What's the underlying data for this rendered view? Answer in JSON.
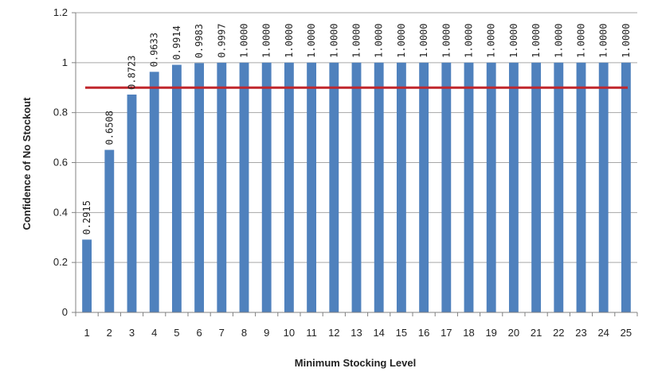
{
  "chart_data": {
    "type": "bar",
    "title": "",
    "xlabel": "Minimum Stocking Level",
    "ylabel": "Confidence of No Stockout",
    "categories": [
      "1",
      "2",
      "3",
      "4",
      "5",
      "6",
      "7",
      "8",
      "9",
      "10",
      "11",
      "12",
      "13",
      "14",
      "15",
      "16",
      "17",
      "18",
      "19",
      "20",
      "21",
      "22",
      "23",
      "24",
      "25"
    ],
    "values": [
      0.2915,
      0.6508,
      0.8723,
      0.9633,
      0.9914,
      0.9983,
      0.9997,
      1.0,
      1.0,
      1.0,
      1.0,
      1.0,
      1.0,
      1.0,
      1.0,
      1.0,
      1.0,
      1.0,
      1.0,
      1.0,
      1.0,
      1.0,
      1.0,
      1.0,
      1.0
    ],
    "data_labels": [
      "0.2915",
      "0.6508",
      "0.8723",
      "0.9633",
      "0.9914",
      "0.9983",
      "0.9997",
      "1.0000",
      "1.0000",
      "1.0000",
      "1.0000",
      "1.0000",
      "1.0000",
      "1.0000",
      "1.0000",
      "1.0000",
      "1.0000",
      "1.0000",
      "1.0000",
      "1.0000",
      "1.0000",
      "1.0000",
      "1.0000",
      "1.0000",
      "1.0000"
    ],
    "ylim": [
      0,
      1.2
    ],
    "yticks": [
      0,
      0.2,
      0.4,
      0.6,
      0.8,
      1,
      1.2
    ],
    "ytick_labels": [
      "0",
      "0.2",
      "0.4",
      "0.6",
      "0.8",
      "1",
      "1.2"
    ],
    "grid": true,
    "legend": "none",
    "reference_line": {
      "y": 0.9
    },
    "colors": {
      "bar": "#4F81BD",
      "reference_line": "#C0272D",
      "grid": "#A6A6A6"
    }
  }
}
